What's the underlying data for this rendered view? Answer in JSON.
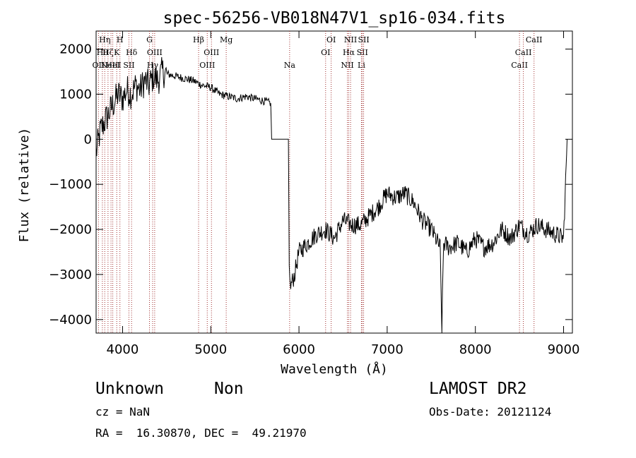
{
  "chart_data": {
    "type": "line",
    "title": "spec-56256-VB018N47V1_sp16-034.fits",
    "xlabel": "Wavelength (Å)",
    "ylabel": "Flux (relative)",
    "xlim": [
      3700,
      9100
    ],
    "ylim": [
      -4300,
      2400
    ],
    "xticks": [
      4000,
      5000,
      6000,
      7000,
      8000,
      9000
    ],
    "yticks": [
      -4000,
      -3000,
      -2000,
      -1000,
      0,
      1000,
      2000
    ],
    "grid": false,
    "line_color": "#000000",
    "marker_color": "#a03030",
    "series": [
      {
        "values_x": [
          3700,
          3750,
          3800,
          3850,
          3900,
          3950,
          4000,
          4050,
          4100,
          4150,
          4200,
          4250,
          4300,
          4350,
          4400,
          4450,
          4500,
          4600,
          4700,
          4800,
          4900,
          5000,
          5100,
          5200,
          5300,
          5400,
          5500,
          5600,
          5680,
          5690,
          5700,
          5880,
          5890,
          5900,
          5950,
          6000,
          6100,
          6200,
          6300,
          6400,
          6500,
          6600,
          6700,
          6800,
          6900,
          7000,
          7100,
          7200,
          7300,
          7400,
          7500,
          7600,
          7620,
          7640,
          7700,
          7800,
          7900,
          8000,
          8100,
          8200,
          8300,
          8400,
          8500,
          8600,
          8700,
          8800,
          8900,
          9000,
          9040
        ],
        "values_y": [
          -300,
          200,
          400,
          600,
          800,
          1000,
          900,
          1100,
          1000,
          1200,
          1100,
          1300,
          1200,
          1400,
          1300,
          1500,
          1450,
          1400,
          1350,
          1300,
          1200,
          1150,
          1000,
          950,
          900,
          950,
          900,
          850,
          800,
          0,
          0,
          0,
          -2800,
          -3300,
          -3000,
          -2500,
          -2300,
          -2100,
          -2000,
          -2200,
          -1800,
          -1900,
          -1900,
          -1700,
          -1500,
          -1200,
          -1300,
          -1200,
          -1400,
          -1800,
          -2000,
          -2400,
          -4200,
          -2300,
          -2400,
          -2300,
          -2500,
          -2200,
          -2400,
          -2300,
          -2000,
          -2200,
          -1900,
          -2100,
          -1900,
          -2000,
          -2100,
          -2200,
          0
        ]
      }
    ],
    "line_markers": [
      {
        "x": 3727,
        "label": "OII",
        "row": 2
      },
      {
        "x": 3771,
        "label": "Hθ",
        "row": 1
      },
      {
        "x": 3798,
        "label": "Hη",
        "row": 0
      },
      {
        "x": 3835,
        "label": "Hζ",
        "row": 1
      },
      {
        "x": 3869,
        "label": "NeIII",
        "row": 2
      },
      {
        "x": 3889,
        "label": "HeI",
        "row": 2
      },
      {
        "x": 3934,
        "label": "K",
        "row": 1
      },
      {
        "x": 3970,
        "label": "H",
        "row": 0
      },
      {
        "x": 4072,
        "label": "SII",
        "row": 2
      },
      {
        "x": 4102,
        "label": "Hδ",
        "row": 1
      },
      {
        "x": 4305,
        "label": "G",
        "row": 0
      },
      {
        "x": 4341,
        "label": "Hγ",
        "row": 2
      },
      {
        "x": 4364,
        "label": "OIII",
        "row": 1
      },
      {
        "x": 4862,
        "label": "Hβ",
        "row": 0
      },
      {
        "x": 4960,
        "label": "OIII",
        "row": 2
      },
      {
        "x": 5008,
        "label": "OIII",
        "row": 1
      },
      {
        "x": 5175,
        "label": "Mg",
        "row": 0
      },
      {
        "x": 5894,
        "label": "Na",
        "row": 2
      },
      {
        "x": 6302,
        "label": "OI",
        "row": 1
      },
      {
        "x": 6365,
        "label": "OI",
        "row": 0
      },
      {
        "x": 6549,
        "label": "NII",
        "row": 2
      },
      {
        "x": 6564,
        "label": "Hα",
        "row": 1
      },
      {
        "x": 6585,
        "label": "NII",
        "row": 0
      },
      {
        "x": 6708,
        "label": "Li",
        "row": 2
      },
      {
        "x": 6718,
        "label": "SII",
        "row": 1
      },
      {
        "x": 6733,
        "label": "SII",
        "row": 0
      },
      {
        "x": 8500,
        "label": "CaII",
        "row": 2
      },
      {
        "x": 8544,
        "label": "CaII",
        "row": 1
      },
      {
        "x": 8665,
        "label": "CaII",
        "row": 0
      }
    ]
  },
  "info": {
    "class_label": "Unknown",
    "subclass_label": "Non",
    "cz_text": "cz = NaN",
    "radec_text": "RA =  16.30870, DEC =  49.21970",
    "survey_label": "LAMOST DR2",
    "obsdate_text": "Obs-Date: 20121124"
  }
}
